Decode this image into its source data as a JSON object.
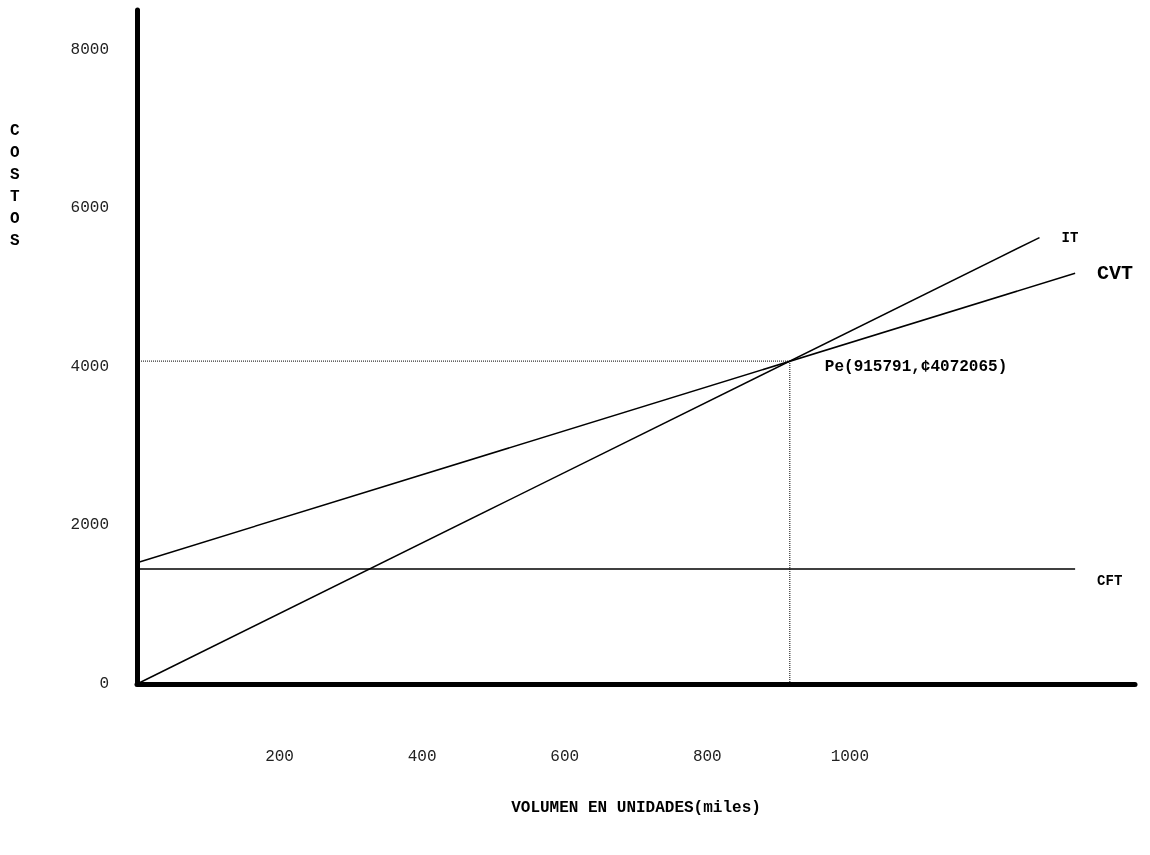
{
  "chart_data": {
    "type": "line",
    "xlabel": "VOLUMEN EN UNIDADES(miles)",
    "ylabel": "COSTOS",
    "xlim": [
      0,
      1400
    ],
    "xticks": [
      200,
      400,
      600,
      800,
      1000
    ],
    "ylim": [
      0,
      8500
    ],
    "yticks": [
      0,
      2000,
      4000,
      6000,
      8000
    ],
    "grid": false,
    "legend": false,
    "marker": "none",
    "line_style": "solid",
    "series": [
      {
        "name": "IT",
        "color": "#000000",
        "x": [
          0,
          1266
        ],
        "values": [
          0,
          5630
        ]
      },
      {
        "name": "CVT",
        "color": "#000000",
        "x": [
          0,
          1316
        ],
        "values": [
          1530,
          5180
        ]
      },
      {
        "name": "CFT",
        "color": "#000000",
        "x": [
          0,
          1316
        ],
        "values": [
          1450,
          1450
        ]
      }
    ],
    "ref_lines": [
      {
        "axis": "x",
        "value": 915.791,
        "line_style": "dotted",
        "color": "#000000"
      },
      {
        "axis": "y",
        "value": 4072.065,
        "line_style": "dotted",
        "color": "#000000"
      }
    ],
    "annotations": [
      {
        "text": "Pe(915791,¢4072065)",
        "x": 915.791,
        "y": 4072.065
      }
    ]
  }
}
